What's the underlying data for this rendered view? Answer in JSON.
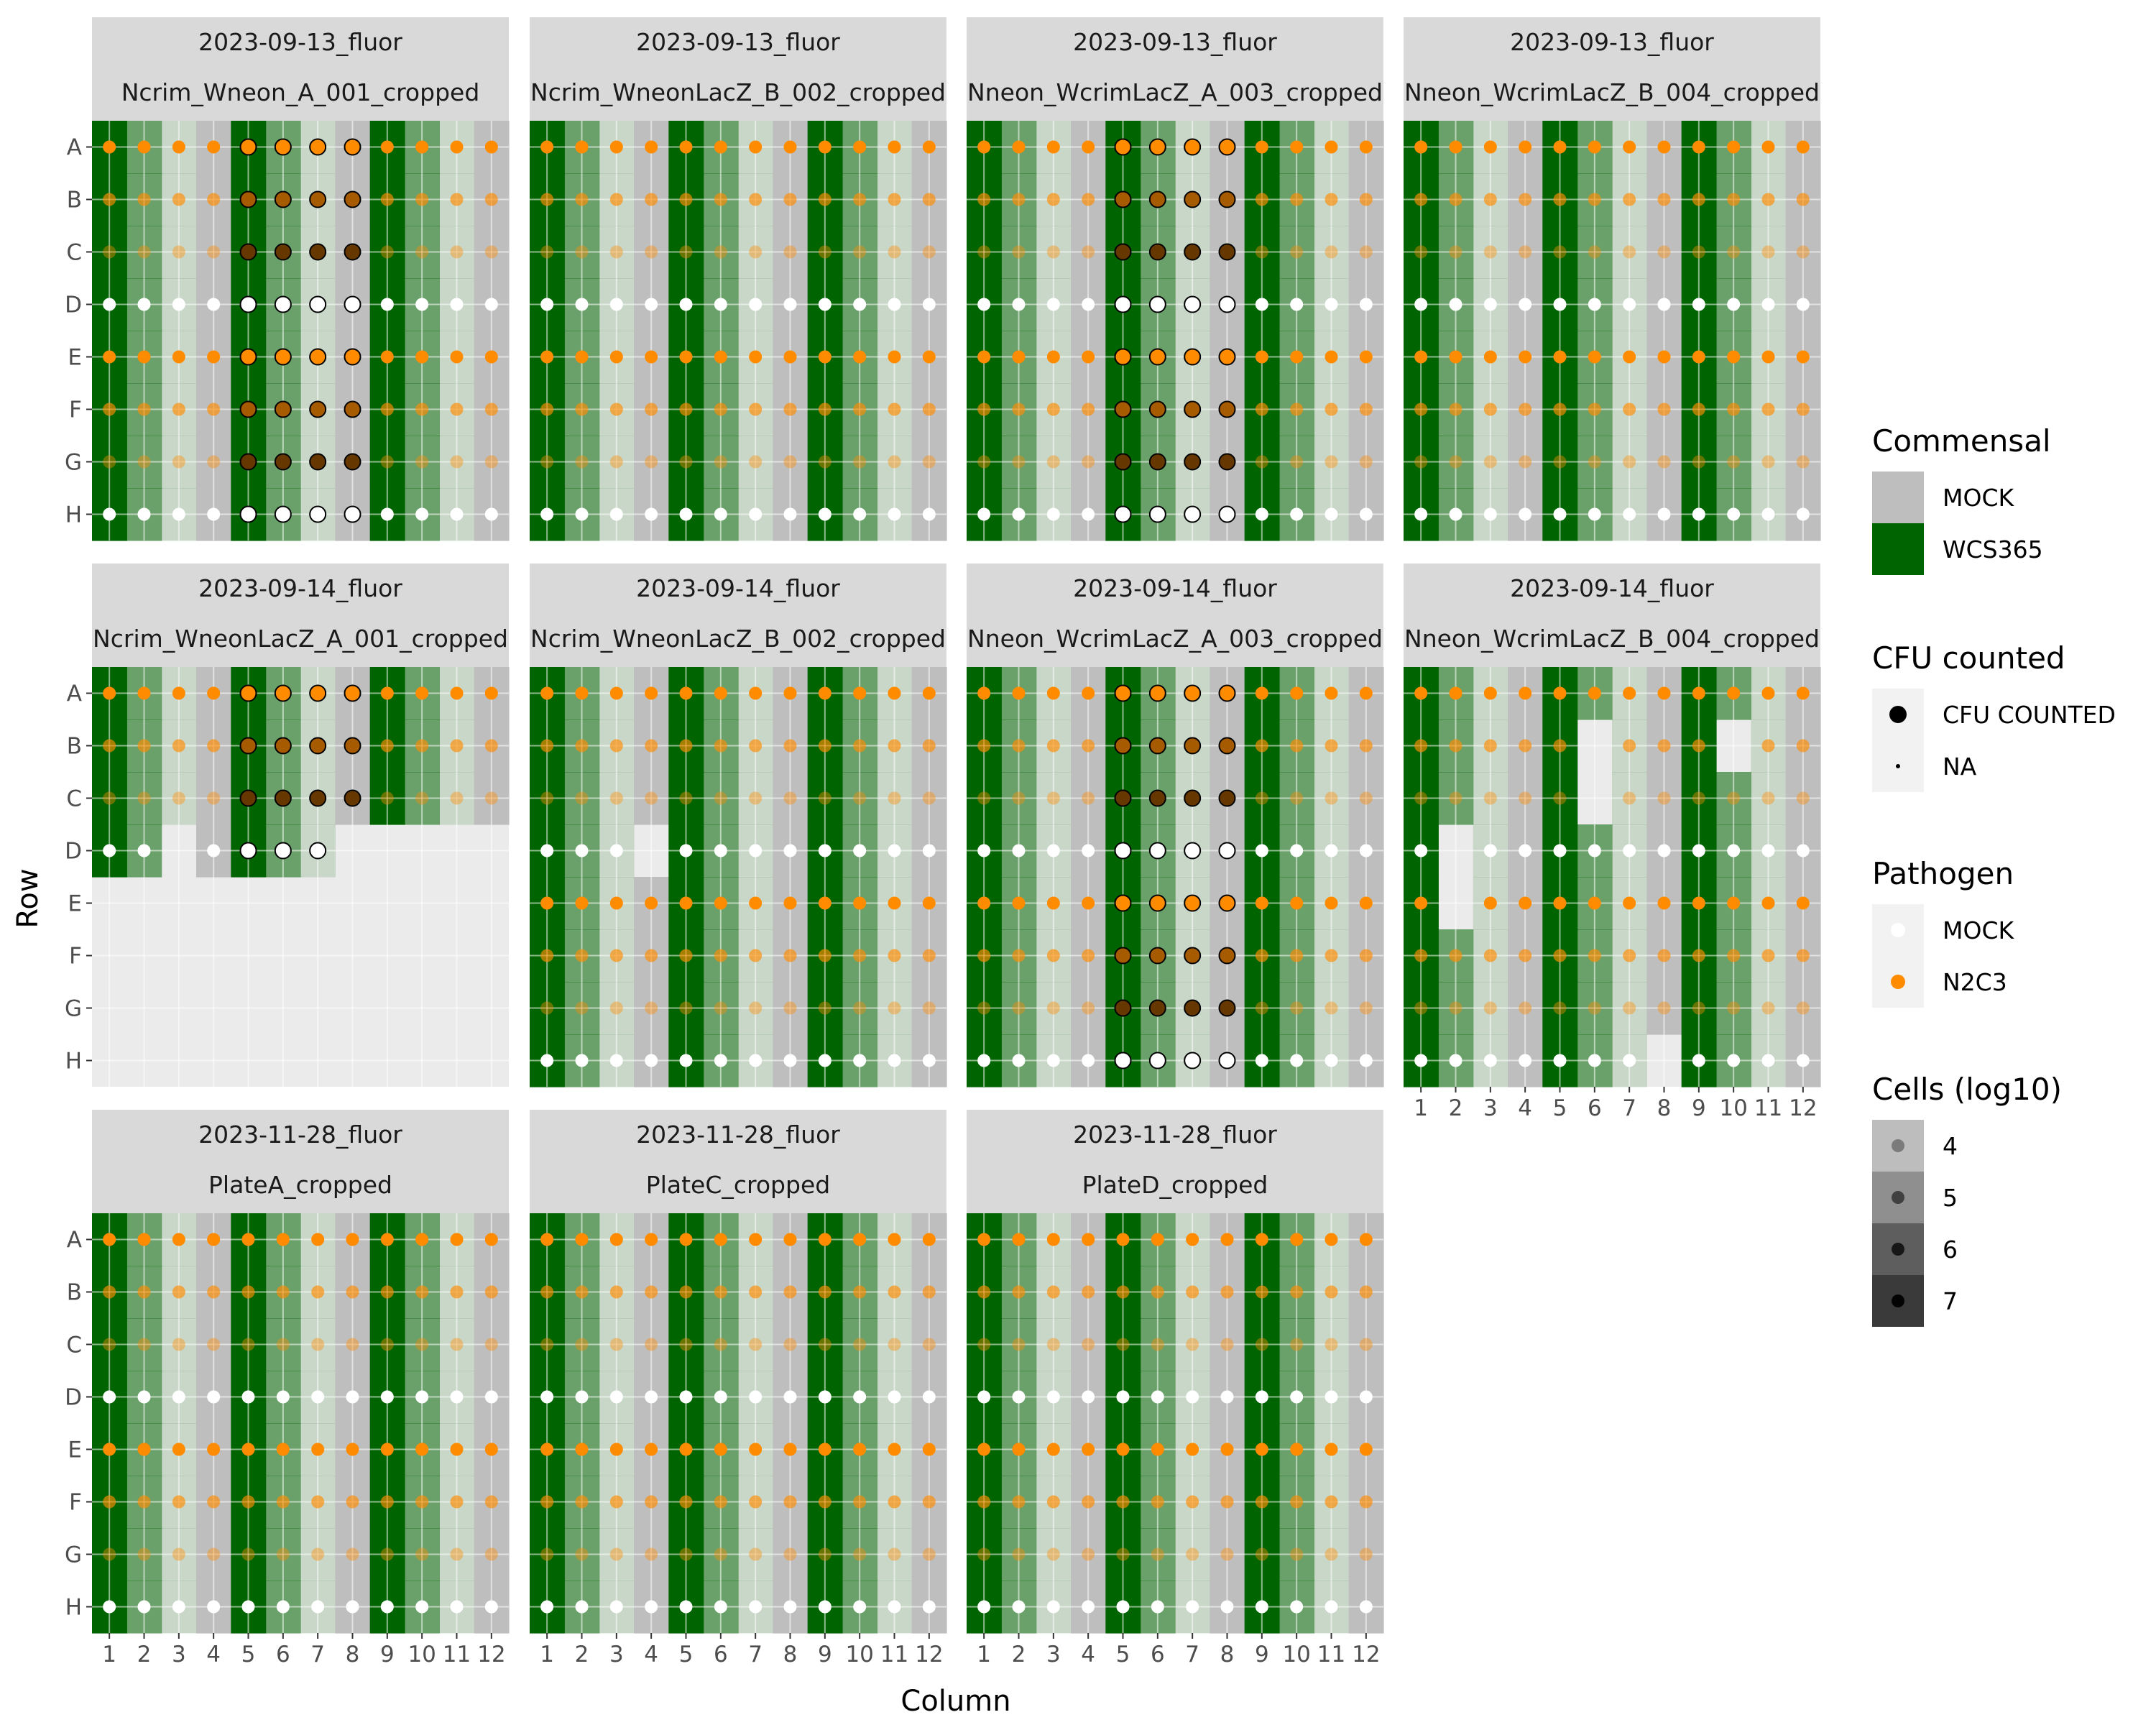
{
  "chart_data": {
    "type": "scatter",
    "subtype": "faceted 96-well plate map",
    "xlabel": "Column",
    "ylabel": "Row",
    "x_ticks": [
      "1",
      "2",
      "3",
      "4",
      "5",
      "6",
      "7",
      "8",
      "9",
      "10",
      "11",
      "12"
    ],
    "y_ticks": [
      "A",
      "B",
      "C",
      "D",
      "E",
      "F",
      "G",
      "H"
    ],
    "legends": {
      "commensal": {
        "title": "Commensal",
        "entries": [
          {
            "label": "MOCK",
            "color": "#bebebe"
          },
          {
            "label": "WCS365",
            "color": "#006400"
          }
        ]
      },
      "cfu": {
        "title": "CFU counted",
        "entries": [
          {
            "label": "CFU COUNTED",
            "shape": "large-dot"
          },
          {
            "label": "NA",
            "shape": "small-dot"
          }
        ]
      },
      "pathogen": {
        "title": "Pathogen",
        "entries": [
          {
            "label": "MOCK",
            "color": "#ffffff"
          },
          {
            "label": "N2C3",
            "color": "#ff8c00"
          }
        ]
      },
      "cells": {
        "title": "Cells (log10)",
        "entries": [
          {
            "label": "4",
            "alpha": 0.35
          },
          {
            "label": "5",
            "alpha": 0.55
          },
          {
            "label": "6",
            "alpha": 0.75
          },
          {
            "label": "7",
            "alpha": 0.95
          }
        ]
      }
    },
    "design": {
      "column_commensal": [
        "WCS365",
        "WCS365",
        "WCS365",
        "MOCK",
        "WCS365",
        "WCS365",
        "WCS365",
        "MOCK",
        "WCS365",
        "WCS365",
        "WCS365",
        "MOCK"
      ],
      "column_cells_log10": [
        7,
        6,
        5,
        4,
        7,
        6,
        5,
        4,
        7,
        6,
        5,
        4
      ],
      "row_pathogen": [
        "N2C3",
        "N2C3",
        "N2C3",
        "MOCK",
        "N2C3",
        "N2C3",
        "N2C3",
        "MOCK"
      ],
      "row_cells_log10": [
        7,
        6,
        5,
        7,
        7,
        6,
        5,
        7
      ]
    },
    "panels": [
      {
        "line1": "2023-09-13_fluor",
        "line2": "Ncrim_Wneon_A_001_cropped",
        "counted_cols": [
          5,
          6,
          7,
          8
        ],
        "missing": []
      },
      {
        "line1": "2023-09-13_fluor",
        "line2": "Ncrim_WneonLacZ_B_002_cropped",
        "counted_cols": [],
        "missing": []
      },
      {
        "line1": "2023-09-13_fluor",
        "line2": "Nneon_WcrimLacZ_A_003_cropped",
        "counted_cols": [
          5,
          6,
          7,
          8
        ],
        "missing": []
      },
      {
        "line1": "2023-09-13_fluor",
        "line2": "Nneon_WcrimLacZ_B_004_cropped",
        "counted_cols": [],
        "missing": []
      },
      {
        "line1": "2023-09-14_fluor",
        "line2": "Ncrim_WneonLacZ_A_001_cropped",
        "counted_cols": [
          5,
          6,
          7,
          8
        ],
        "present_rows_by_col": [
          4,
          4,
          3,
          4,
          4,
          4,
          4,
          3,
          3,
          3,
          3,
          3
        ]
      },
      {
        "line1": "2023-09-14_fluor",
        "line2": "Ncrim_WneonLacZ_B_002_cropped",
        "counted_cols": [],
        "missing": [
          [
            4,
            4
          ]
        ]
      },
      {
        "line1": "2023-09-14_fluor",
        "line2": "Nneon_WcrimLacZ_A_003_cropped",
        "counted_cols": [
          5,
          6,
          7,
          8
        ],
        "missing": []
      },
      {
        "line1": "2023-09-14_fluor",
        "line2": "Nneon_WcrimLacZ_B_004_cropped",
        "counted_cols": [],
        "missing": [
          [
            6,
            2
          ],
          [
            6,
            3
          ],
          [
            2,
            4
          ],
          [
            2,
            5
          ],
          [
            10,
            2
          ],
          [
            8,
            8
          ]
        ]
      },
      {
        "line1": "2023-11-28_fluor",
        "line2": "PlateA_cropped",
        "counted_cols": [],
        "missing": []
      },
      {
        "line1": "2023-11-28_fluor",
        "line2": "PlateC_cropped",
        "counted_cols": [],
        "missing": []
      },
      {
        "line1": "2023-11-28_fluor",
        "line2": "PlateD_cropped",
        "counted_cols": [],
        "missing": []
      }
    ]
  }
}
